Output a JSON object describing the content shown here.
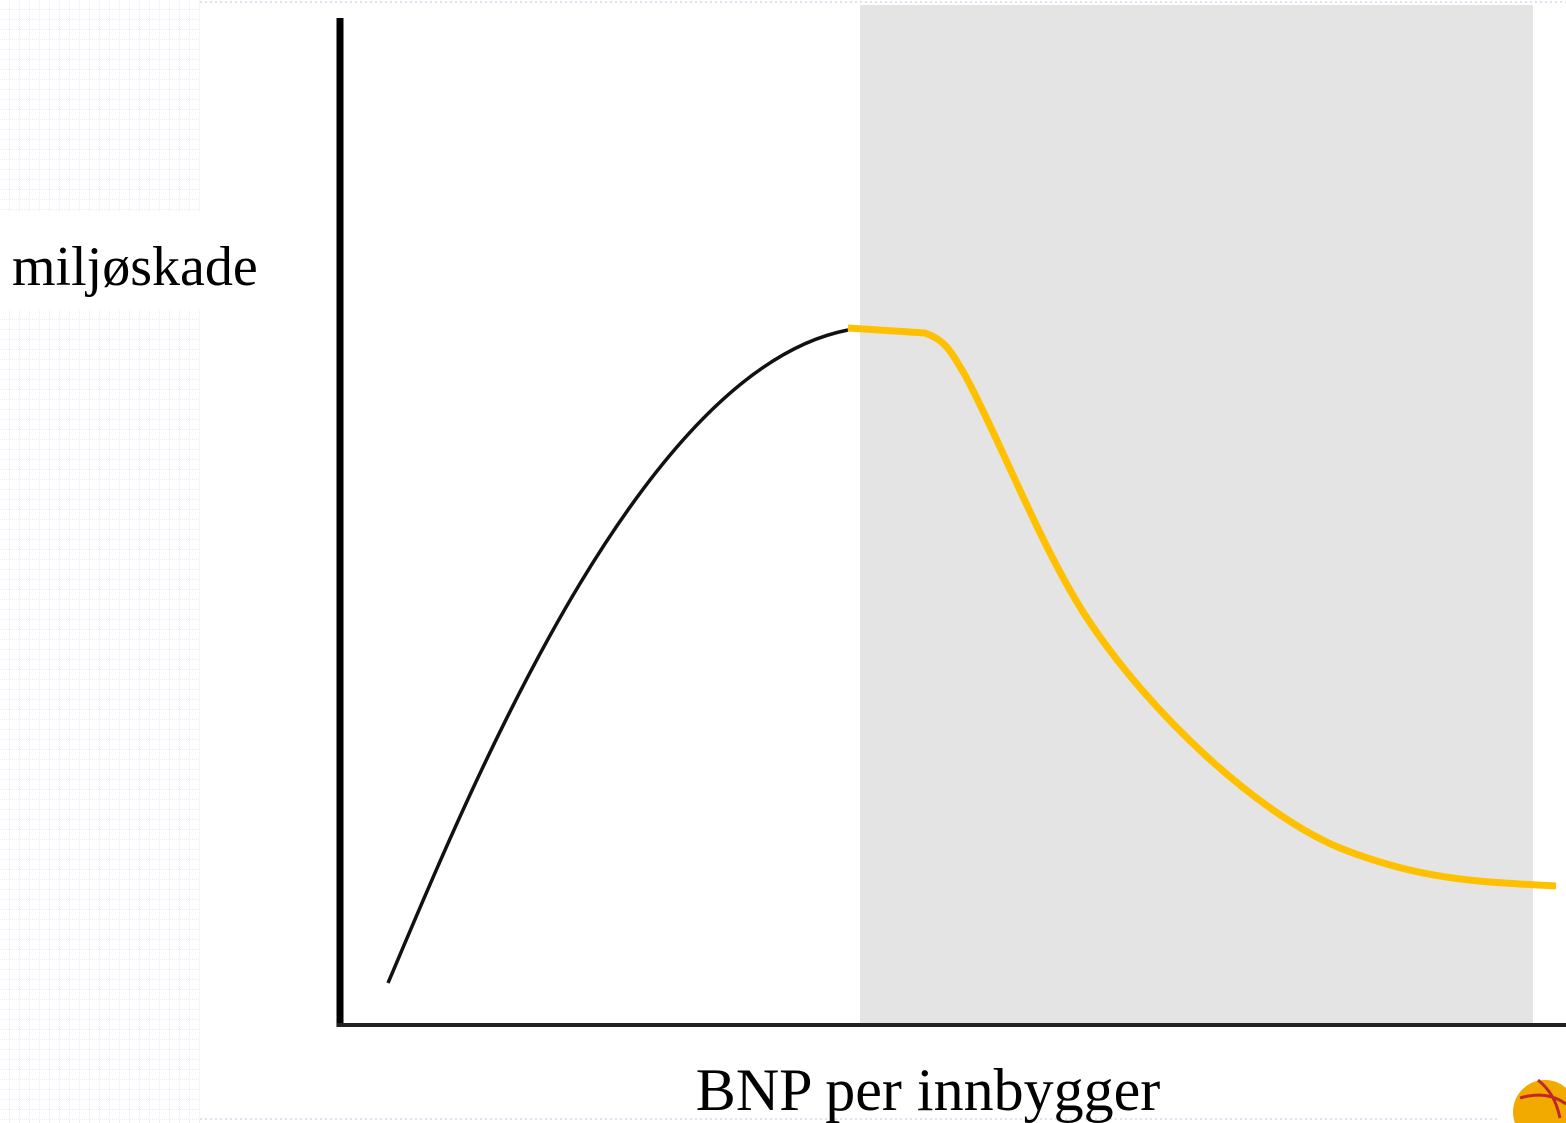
{
  "labels": {
    "y_axis": "miljøskade",
    "x_axis": "BNP per innbygger"
  }
}
